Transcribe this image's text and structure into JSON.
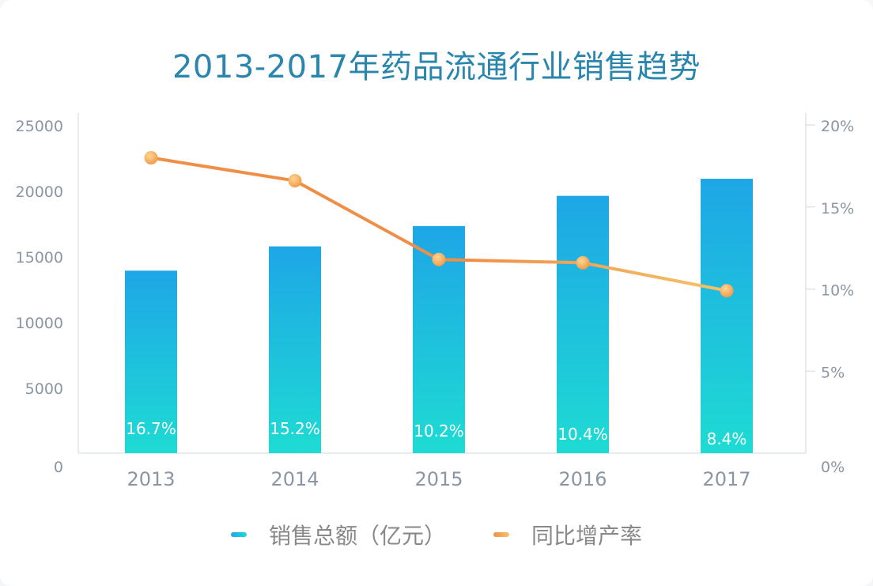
{
  "chart_data": {
    "type": "bar",
    "title": "2013-2017年药品流通行业销售趋势",
    "categories": [
      "2013",
      "2014",
      "2015",
      "2016",
      "2017"
    ],
    "series": [
      {
        "name": "销售总额（亿元）",
        "type": "bar",
        "axis": "left",
        "values": [
          13900,
          15750,
          17300,
          19600,
          20900
        ],
        "bar_labels": [
          "16.7%",
          "15.2%",
          "10.2%",
          "10.4%",
          "8.4%"
        ]
      },
      {
        "name": "同比增产率",
        "type": "line",
        "axis": "right",
        "values": [
          18.0,
          16.6,
          11.8,
          11.6,
          9.9
        ]
      }
    ],
    "y_left": {
      "ylim": [
        0,
        25000
      ],
      "ticks": [
        "0",
        "5000",
        "10000",
        "15000",
        "20000",
        "25000"
      ]
    },
    "y_right": {
      "ylim": [
        0,
        20
      ],
      "ticks": [
        "0%",
        "5%",
        "10%",
        "15%",
        "20%"
      ]
    },
    "grid": false,
    "legend": "bottom-center",
    "colors": {
      "bar_top": "#1ea6e6",
      "bar_bottom": "#1edbd3",
      "line_start": "#ef8f47",
      "line_end": "#f5c36a",
      "marker": "#f6b25a",
      "title": "#2a86ad",
      "axis_text": "#8a96a3"
    }
  },
  "legend": {
    "bar_label": "销售总额（亿元）",
    "line_label": "同比增产率"
  }
}
